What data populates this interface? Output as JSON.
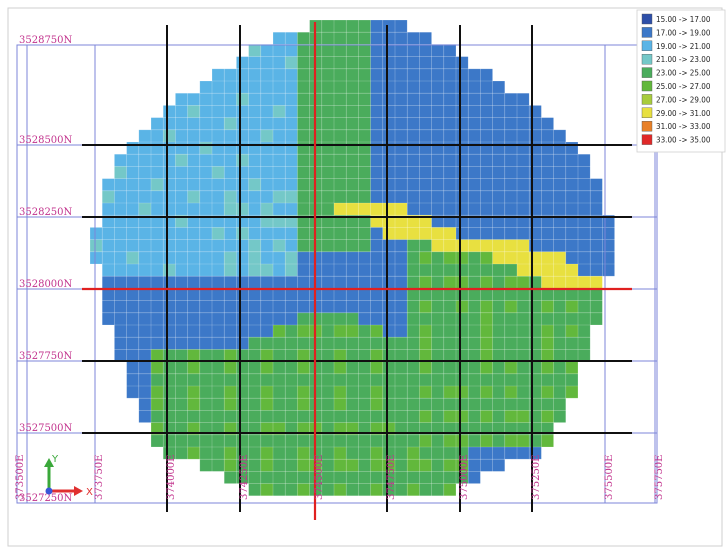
{
  "legend": [
    {
      "label": "15.00 -> 17.00",
      "color": "#2e4fa8"
    },
    {
      "label": "17.00 -> 19.00",
      "color": "#3c78c8"
    },
    {
      "label": "19.00 -> 21.00",
      "color": "#5ab4e6"
    },
    {
      "label": "21.00 -> 23.00",
      "color": "#74c8c8"
    },
    {
      "label": "23.00 -> 25.00",
      "color": "#4aac5c"
    },
    {
      "label": "25.00 -> 27.00",
      "color": "#62b83c"
    },
    {
      "label": "27.00 -> 29.00",
      "color": "#a8cc3c"
    },
    {
      "label": "29.00 -> 31.00",
      "color": "#e8e040"
    },
    {
      "label": "31.00 -> 33.00",
      "color": "#e88028"
    },
    {
      "label": "33.00 -> 35.00",
      "color": "#e02828"
    }
  ],
  "northings": [
    "3528750N",
    "3528500N",
    "3528250N",
    "3528000N",
    "3527750N",
    "3527500N",
    "3527250N"
  ],
  "eastings": [
    "373500E",
    "373750E",
    "374000E",
    "374250E",
    "374500E",
    "374750E",
    "375000E",
    "375250E",
    "375500E",
    "375750E"
  ],
  "axes": {
    "y": "Y",
    "x": "X"
  },
  "highlighted_section_lines": {
    "easting": "374500E",
    "northing": "3528000N"
  }
}
